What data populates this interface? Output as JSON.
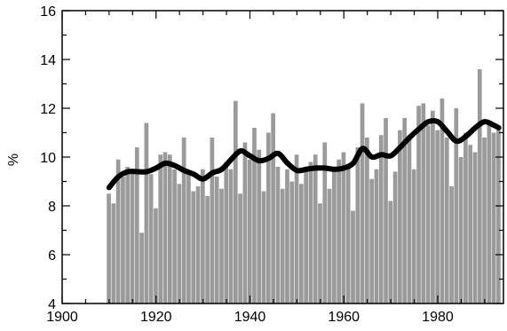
{
  "chart_data": {
    "type": "bar",
    "title": "",
    "xlabel": "",
    "ylabel": "%",
    "xlim": [
      1900,
      1994
    ],
    "ylim": [
      4,
      16
    ],
    "xticks": [
      1900,
      1920,
      1940,
      1960,
      1980
    ],
    "yticks": [
      4,
      6,
      8,
      10,
      12,
      14,
      16
    ],
    "xtick_labels": [
      "1900",
      "1920",
      "1940",
      "1960",
      "1980"
    ],
    "ytick_labels": [
      "4",
      "6",
      "8",
      "10",
      "12",
      "14",
      "16"
    ],
    "grid": false,
    "bar_color": "#9a9a9a",
    "line_color": "#000000",
    "series": [
      {
        "type": "bar",
        "x": [
          1910,
          1911,
          1912,
          1913,
          1914,
          1915,
          1916,
          1917,
          1918,
          1919,
          1920,
          1921,
          1922,
          1923,
          1924,
          1925,
          1926,
          1927,
          1928,
          1929,
          1930,
          1931,
          1932,
          1933,
          1934,
          1935,
          1936,
          1937,
          1938,
          1939,
          1940,
          1941,
          1942,
          1943,
          1944,
          1945,
          1946,
          1947,
          1948,
          1949,
          1950,
          1951,
          1952,
          1953,
          1954,
          1955,
          1956,
          1957,
          1958,
          1959,
          1960,
          1961,
          1962,
          1963,
          1964,
          1965,
          1966,
          1967,
          1968,
          1969,
          1970,
          1971,
          1972,
          1973,
          1974,
          1975,
          1976,
          1977,
          1978,
          1979,
          1980,
          1981,
          1982,
          1983,
          1984,
          1985,
          1986,
          1987,
          1988,
          1989,
          1990,
          1991,
          1992,
          1993
        ],
        "values": [
          8.5,
          8.1,
          9.9,
          9.2,
          9.6,
          9.4,
          10.4,
          6.9,
          11.4,
          9.3,
          7.9,
          10.1,
          10.2,
          10.1,
          9.5,
          8.9,
          10.8,
          9.3,
          8.6,
          8.8,
          9.5,
          8.4,
          10.8,
          9.2,
          8.7,
          9.8,
          9.5,
          12.3,
          8.5,
          10.6,
          9.9,
          11.2,
          10.3,
          8.6,
          11.0,
          11.8,
          9.6,
          8.7,
          9.5,
          9.0,
          10.1,
          8.9,
          9.4,
          9.8,
          10.1,
          8.1,
          10.6,
          8.7,
          9.4,
          9.9,
          10.2,
          9.6,
          7.8,
          10.4,
          12.2,
          10.8,
          9.1,
          9.5,
          10.9,
          11.6,
          8.2,
          9.4,
          11.1,
          11.6,
          10.9,
          9.5,
          12.1,
          12.2,
          11.3,
          11.9,
          11.1,
          12.4,
          10.8,
          8.8,
          12.0,
          10.0,
          11.0,
          10.5,
          10.2,
          13.6,
          10.8,
          11.4,
          11.0,
          11.1
        ]
      },
      {
        "type": "line",
        "x": [
          1910,
          1912,
          1914,
          1916,
          1918,
          1920,
          1922,
          1924,
          1926,
          1928,
          1930,
          1932,
          1934,
          1936,
          1938,
          1940,
          1942,
          1944,
          1946,
          1948,
          1950,
          1952,
          1954,
          1956,
          1958,
          1960,
          1962,
          1964,
          1966,
          1968,
          1970,
          1972,
          1974,
          1976,
          1978,
          1980,
          1982,
          1984,
          1986,
          1988,
          1990,
          1992,
          1993
        ],
        "values": [
          8.75,
          9.2,
          9.4,
          9.4,
          9.4,
          9.55,
          9.75,
          9.65,
          9.45,
          9.3,
          9.1,
          9.35,
          9.5,
          9.9,
          10.25,
          10.05,
          9.85,
          9.95,
          10.15,
          9.75,
          9.45,
          9.5,
          9.55,
          9.55,
          9.5,
          9.55,
          9.75,
          10.35,
          10.0,
          10.1,
          10.05,
          10.4,
          10.8,
          11.15,
          11.45,
          11.45,
          11.05,
          10.65,
          10.85,
          11.2,
          11.45,
          11.3,
          11.2
        ]
      }
    ]
  }
}
